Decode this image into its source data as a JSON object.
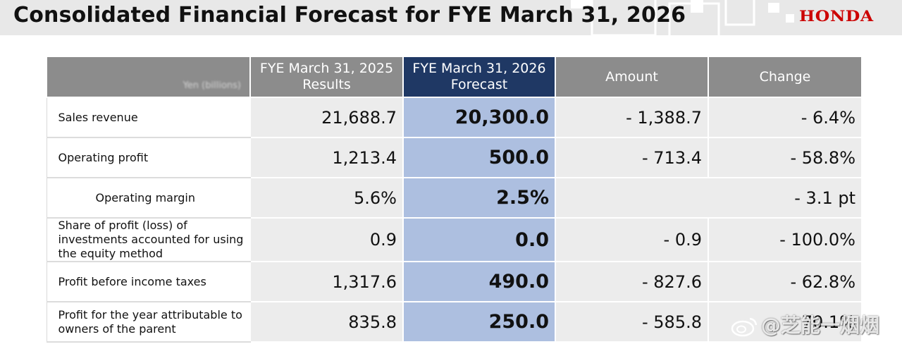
{
  "header": {
    "title": "Consolidated Financial Forecast for FYE March 31, 2026",
    "logo": "HONDA"
  },
  "table": {
    "unit_label": "Yen (billions)",
    "columns": [
      "FYE March 31, 2025\nResults",
      "FYE March 31, 2026\nForecast",
      "Amount",
      "Change"
    ],
    "rows": [
      {
        "label": "Sales revenue",
        "results": "21,688.7",
        "forecast": "20,300.0",
        "amount": "- 1,388.7",
        "change": "- 6.4%"
      },
      {
        "label": "Operating profit",
        "results": "1,213.4",
        "forecast": "500.0",
        "amount": "- 713.4",
        "change": "- 58.8%"
      },
      {
        "label": "Operating margin",
        "results": "5.6%",
        "forecast": "2.5%",
        "change": "- 3.1 pt"
      },
      {
        "label": "Share of profit (loss) of investments accounted for using the equity method",
        "results": "0.9",
        "forecast": "0.0",
        "amount": "- 0.9",
        "change": "- 100.0%"
      },
      {
        "label": "Profit before income taxes",
        "results": "1,317.6",
        "forecast": "490.0",
        "amount": "- 827.6",
        "change": "- 62.8%"
      },
      {
        "label": "Profit for the year attributable to owners of the parent",
        "results": "835.8",
        "forecast": "250.0",
        "amount": "- 585.8",
        "change": "- 70.1%"
      }
    ]
  },
  "watermark": {
    "text": "@芝能一烟烟",
    "icon": "weibo-icon"
  },
  "colors": {
    "header_bg": "#e8e8e8",
    "table_header": "#8c8c8c",
    "forecast_header": "#1f3864",
    "forecast_cell": "#adbfe0",
    "cell_bg": "#ececec",
    "brand": "#cc0000"
  }
}
